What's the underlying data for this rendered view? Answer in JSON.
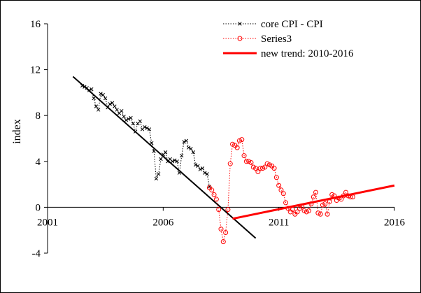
{
  "chart_data": {
    "type": "line",
    "title": "",
    "xlabel": "",
    "ylabel": "index",
    "xlim": [
      2001,
      2016
    ],
    "ylim": [
      -4,
      16
    ],
    "x_ticks": [
      "2001",
      "2006",
      "2011",
      "2016"
    ],
    "y_ticks": [
      "-4",
      "0",
      "4",
      "8",
      "12",
      "16"
    ],
    "legend_position": "top-right",
    "grid": false,
    "series": [
      {
        "name": "core CPI - CPI",
        "color": "#000000",
        "marker": "x",
        "line": "dotted",
        "x": [
          2002.5,
          2002.6,
          2002.7,
          2002.8,
          2002.9,
          2003.0,
          2003.1,
          2003.2,
          2003.3,
          2003.4,
          2003.5,
          2003.6,
          2003.7,
          2003.8,
          2003.9,
          2004.0,
          2004.1,
          2004.2,
          2004.3,
          2004.4,
          2004.5,
          2004.6,
          2004.7,
          2004.8,
          2004.9,
          2005.0,
          2005.1,
          2005.2,
          2005.3,
          2005.4,
          2005.5,
          2005.6,
          2005.7,
          2005.8,
          2005.9,
          2006.0,
          2006.1,
          2006.2,
          2006.3,
          2006.4,
          2006.5,
          2006.6,
          2006.7,
          2006.8,
          2006.9,
          2007.0,
          2007.1,
          2007.2,
          2007.3,
          2007.4,
          2007.5,
          2007.6,
          2007.7,
          2007.8,
          2007.9,
          2008.0
        ],
        "y": [
          10.6,
          10.5,
          10.4,
          10.2,
          10.3,
          9.5,
          8.8,
          8.5,
          9.9,
          9.8,
          9.5,
          8.7,
          9.0,
          9.1,
          8.8,
          8.5,
          8.2,
          8.4,
          7.9,
          7.6,
          7.7,
          7.8,
          7.3,
          6.6,
          7.3,
          7.5,
          6.8,
          7.0,
          6.9,
          6.8,
          5.6,
          4.9,
          2.5,
          2.9,
          4.2,
          4.6,
          4.8,
          4.0,
          4.2,
          4.0,
          4.1,
          4.0,
          3.0,
          4.5,
          5.7,
          5.8,
          5.2,
          5.1,
          4.8,
          3.7,
          3.6,
          3.3,
          3.4,
          3.0,
          2.9,
          1.8
        ],
        "labels": [
          "×",
          "×",
          "×",
          "×",
          "×",
          "×",
          "×",
          "×",
          "×",
          "×",
          "×",
          "×",
          "×",
          "×",
          "×",
          "×",
          "×",
          "×",
          "×",
          "×",
          "×",
          "×",
          "×",
          "×",
          "×",
          "×",
          "×",
          "×",
          "×",
          "×",
          "×",
          "×",
          "×",
          "×",
          "×",
          "×",
          "×",
          "×",
          "×",
          "×",
          "×",
          "×",
          "×",
          "×",
          "×",
          "×",
          "×",
          "×",
          "×",
          "×",
          "×",
          "×",
          "×",
          "×",
          "×",
          "×"
        ]
      },
      {
        "name": "Series3",
        "color": "#ff0000",
        "marker": "circle",
        "line": "dotted",
        "x": [
          2008.0,
          2008.1,
          2008.2,
          2008.3,
          2008.4,
          2008.5,
          2008.6,
          2008.7,
          2008.8,
          2008.9,
          2009.0,
          2009.1,
          2009.2,
          2009.3,
          2009.4,
          2009.5,
          2009.6,
          2009.7,
          2009.8,
          2009.9,
          2010.0,
          2010.1,
          2010.2,
          2010.3,
          2010.4,
          2010.5,
          2010.6,
          2010.7,
          2010.8,
          2010.9,
          2011.0,
          2011.1,
          2011.2,
          2011.3,
          2011.4,
          2011.5,
          2011.6,
          2011.7,
          2011.8,
          2011.9,
          2012.0,
          2012.1,
          2012.2,
          2012.3,
          2012.4,
          2012.5,
          2012.6,
          2012.7,
          2012.8,
          2012.9,
          2013.0,
          2013.1,
          2013.2,
          2013.3,
          2013.4,
          2013.5,
          2013.6,
          2013.7,
          2013.8,
          2013.9,
          2014.0,
          2014.1,
          2014.2
        ],
        "y": [
          1.7,
          1.5,
          1.1,
          0.7,
          -0.2,
          -1.9,
          -3.0,
          -2.2,
          -0.2,
          3.8,
          5.5,
          5.4,
          5.2,
          5.8,
          5.9,
          4.5,
          4.0,
          4.0,
          3.9,
          3.5,
          3.4,
          3.1,
          3.4,
          3.4,
          3.5,
          3.8,
          3.7,
          3.6,
          3.4,
          2.6,
          1.9,
          1.5,
          1.2,
          0.4,
          -0.1,
          -0.4,
          -0.2,
          -0.6,
          -0.4,
          -0.1,
          0.1,
          -0.3,
          -0.4,
          -0.3,
          0.3,
          0.9,
          1.3,
          -0.5,
          -0.6,
          0.2,
          0.3,
          -0.6,
          0.5,
          1.1,
          1.0,
          0.6,
          0.8,
          0.7,
          1.0,
          1.3,
          1.0,
          0.9,
          0.9
        ],
        "labels": [
          "○",
          "○",
          "○",
          "○",
          "○",
          "○",
          "○",
          "○",
          "○",
          "○",
          "○",
          "○",
          "○",
          "○",
          "○",
          "○",
          "○",
          "○",
          "○",
          "○",
          "○",
          "○",
          "○",
          "○",
          "○",
          "○",
          "○",
          "○",
          "○",
          "○",
          "○",
          "○",
          "○",
          "○",
          "○",
          "○",
          "○",
          "○",
          "○",
          "○",
          "○",
          "○",
          "○",
          "○",
          "○",
          "○",
          "○",
          "○",
          "○",
          "○",
          "○",
          "○",
          "○",
          "○",
          "○",
          "○",
          "○",
          "○",
          "○",
          "○",
          "○",
          "○",
          "○"
        ]
      },
      {
        "name": "new trend: 2010-2016",
        "color": "#ff0000",
        "marker": "none",
        "line": "solid",
        "x": [
          2009.0,
          2016.0
        ],
        "y": [
          -1.0,
          1.9
        ]
      }
    ],
    "fitted_line": {
      "color": "#000000",
      "x": [
        2002.1,
        2010.0
      ],
      "y": [
        11.4,
        -2.7
      ]
    }
  }
}
